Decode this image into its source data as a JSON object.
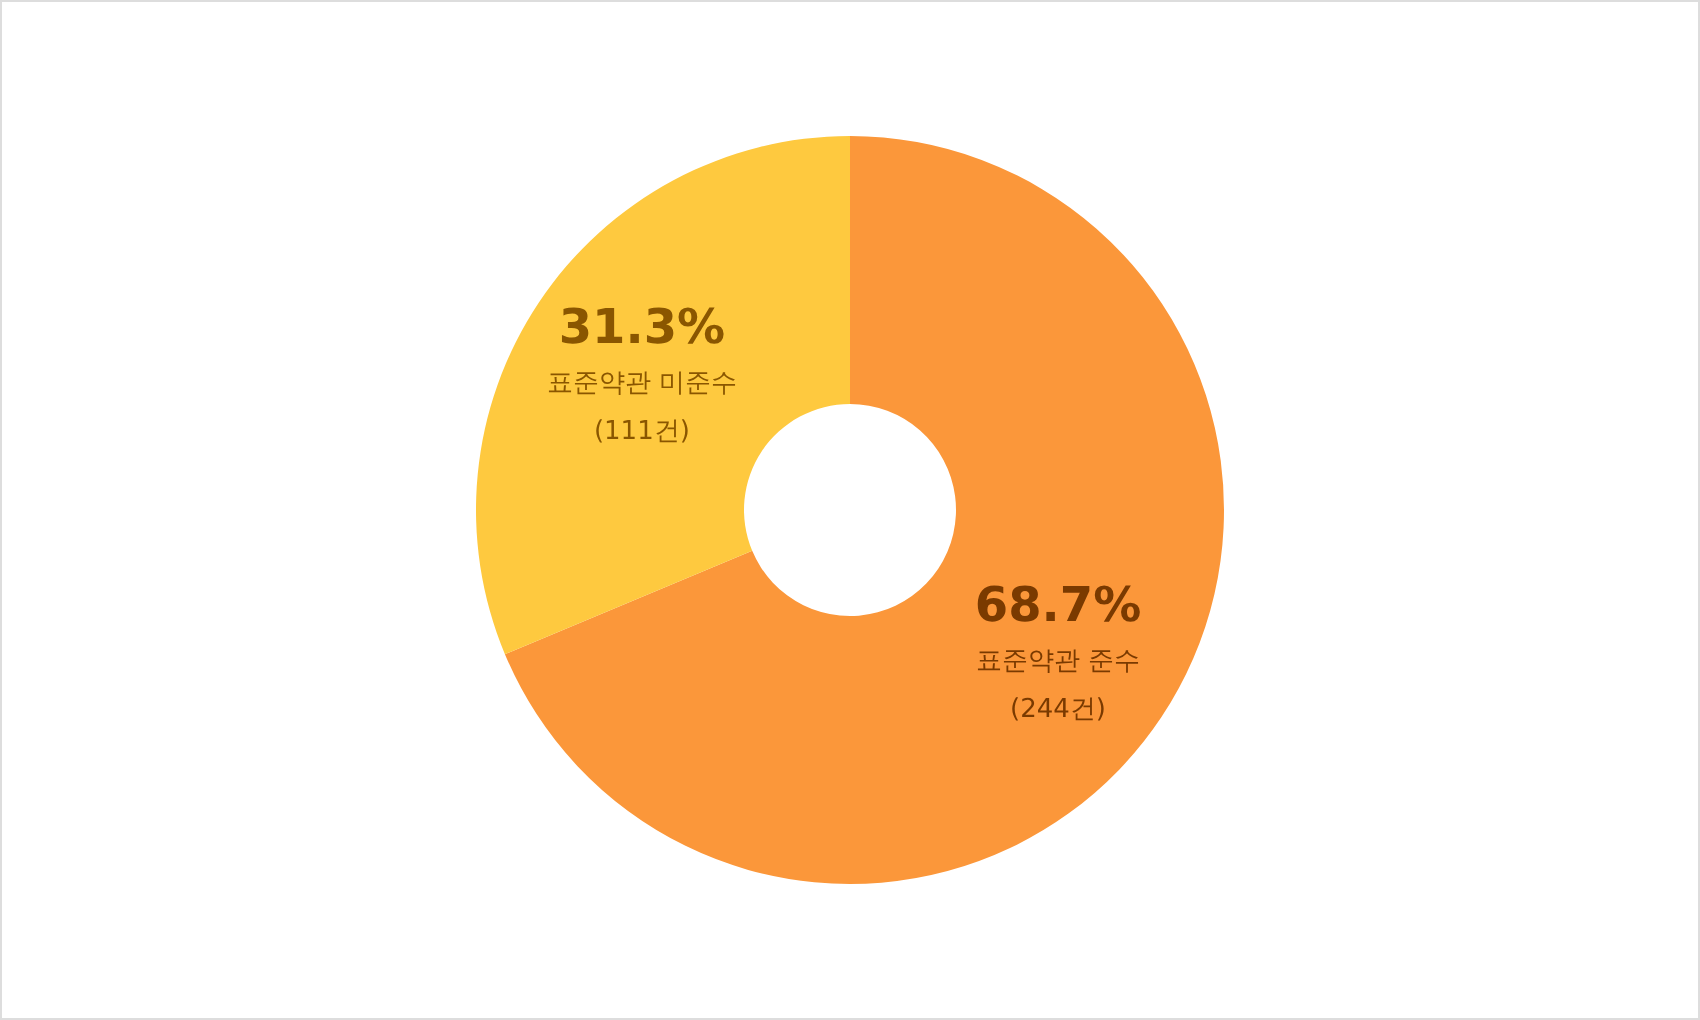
{
  "chart_data": {
    "type": "donut",
    "categories": [
      "표준약관 준수",
      "표준약관 미준수"
    ],
    "values": [
      68.7,
      31.3
    ],
    "value_labels": [
      "68.7%",
      "31.3%"
    ],
    "colors": [
      "#fb973a",
      "#fec93f"
    ],
    "annotations": [
      "(244건)",
      "(111건)"
    ]
  }
}
